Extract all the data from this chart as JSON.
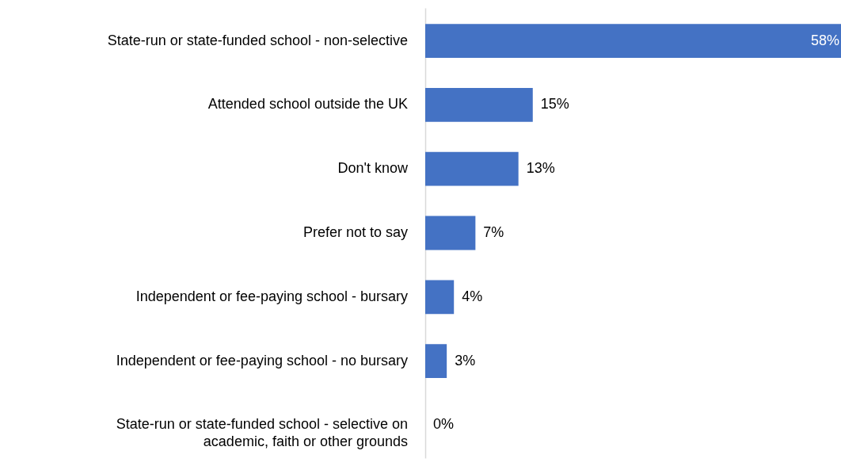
{
  "chart_data": {
    "type": "bar",
    "orientation": "horizontal",
    "categories": [
      "State-run or state-funded school - non-selective",
      "Attended school outside the UK",
      "Don't know",
      "Prefer not to say",
      "Independent or fee-paying school - bursary",
      "Independent or fee-paying school - no bursary",
      "State-run or state-funded school - selective on academic, faith or other grounds"
    ],
    "values": [
      58,
      15,
      13,
      7,
      4,
      3,
      0
    ],
    "value_labels": [
      "58%",
      "15%",
      "13%",
      "7%",
      "4%",
      "3%",
      "0%"
    ],
    "color": "#4472c4",
    "xlim": [
      0,
      58
    ]
  }
}
